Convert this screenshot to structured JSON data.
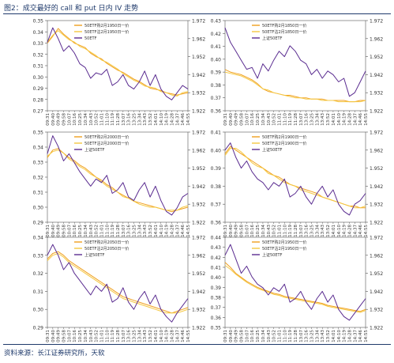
{
  "figure": {
    "title": "图2：成交最好的 call 和 put 日内 IV 走势",
    "source": "资料来源：长江证券研究所，天软"
  },
  "colors": {
    "orange": "#f0a020",
    "lightorange": "#f5c842",
    "purple": "#5a2c90",
    "axis": "#555555",
    "title": "#1f3a6b"
  },
  "chart_data": [
    {
      "type": "line",
      "y_left": [
        0.27,
        0.28,
        0.29,
        0.3,
        0.31,
        0.32,
        0.33,
        0.34,
        0.35
      ],
      "y_left_labels": [
        "0.27",
        "0.28",
        "0.29",
        "0.30",
        "0.31",
        "0.32",
        "0.33",
        "0.34",
        "0.35"
      ],
      "y_right": [
        1.922,
        1.932,
        1.942,
        1.952,
        1.962,
        1.972
      ],
      "y_right_labels": [
        "1.922",
        "1.932",
        "1.942",
        "1.952",
        "1.962",
        "1.972"
      ],
      "x_labels": [
        "09:31",
        "09:40",
        "09:49",
        "09:58",
        "10:07",
        "10:16",
        "10:25",
        "10:34",
        "10:43",
        "10:52",
        "11:01",
        "11:10",
        "11:19",
        "11:28",
        "13:07",
        "13:16",
        "13:25",
        "13:34",
        "13:43",
        "13:52",
        "14:01",
        "14:10",
        "14:19",
        "14:28",
        "14:37",
        "14:46",
        "14:55"
      ],
      "series": [
        {
          "name": "50ETF购2月1950日一价",
          "axis": "left",
          "color": "orange",
          "values": [
            0.33,
            0.336,
            0.343,
            0.338,
            0.334,
            0.33,
            0.328,
            0.326,
            0.321,
            0.318,
            0.316,
            0.312,
            0.309,
            0.306,
            0.304,
            0.301,
            0.298,
            0.296,
            0.293,
            0.29,
            0.289,
            0.288,
            0.286,
            0.285,
            0.284,
            0.285,
            0.286
          ]
        },
        {
          "name": "50ETF沽2月1950日一价",
          "axis": "left",
          "color": "lightorange",
          "values": [
            0.331,
            0.337,
            0.341,
            0.337,
            0.333,
            0.331,
            0.327,
            0.325,
            0.322,
            0.319,
            0.315,
            0.313,
            0.31,
            0.307,
            0.303,
            0.3,
            0.297,
            0.295,
            0.292,
            0.291,
            0.29,
            0.287,
            0.286,
            0.284,
            0.283,
            0.286,
            0.287
          ]
        },
        {
          "name": "50ETF",
          "axis": "right",
          "color": "purple",
          "values": [
            1.96,
            1.968,
            1.962,
            1.955,
            1.958,
            1.954,
            1.948,
            1.946,
            1.94,
            1.943,
            1.942,
            1.945,
            1.936,
            1.938,
            1.942,
            1.936,
            1.934,
            1.938,
            1.944,
            1.936,
            1.942,
            1.934,
            1.93,
            1.928,
            1.932,
            1.936,
            1.934
          ]
        }
      ]
    },
    {
      "type": "line",
      "y_left": [
        0.36,
        0.37,
        0.38,
        0.39,
        0.4,
        0.41,
        0.42,
        0.43
      ],
      "y_left_labels": [
        "0.36",
        "0.37",
        "0.38",
        "0.39",
        "0.40",
        "0.41",
        "0.42",
        "0.43"
      ],
      "y_right": [
        1.922,
        1.932,
        1.942,
        1.952,
        1.962,
        1.972
      ],
      "y_right_labels": [
        "1.922",
        "1.932",
        "1.942",
        "1.952",
        "1.962",
        "1.972"
      ],
      "x_labels": [
        "09:31",
        "09:40",
        "09:49",
        "09:58",
        "10:07",
        "10:16",
        "10:25",
        "10:34",
        "10:43",
        "10:52",
        "11:01",
        "11:10",
        "11:19",
        "11:28",
        "13:07",
        "13:16",
        "13:25",
        "13:34",
        "13:43",
        "13:52",
        "14:01",
        "14:10",
        "14:19",
        "14:28",
        "14:37",
        "14:46",
        "14:55"
      ],
      "series": [
        {
          "name": "50ETF购2月1850日一价",
          "axis": "left",
          "color": "orange",
          "values": [
            0.392,
            0.39,
            0.389,
            0.388,
            0.386,
            0.384,
            0.381,
            0.377,
            0.375,
            0.374,
            0.373,
            0.372,
            0.372,
            0.371,
            0.37,
            0.37,
            0.369,
            0.369,
            0.369,
            0.368,
            0.368,
            0.368,
            0.368,
            0.367,
            0.367,
            0.368,
            0.368
          ]
        },
        {
          "name": "50ETF沽2月1850日一价",
          "axis": "left",
          "color": "lightorange",
          "values": [
            0.39,
            0.389,
            0.388,
            0.387,
            0.385,
            0.383,
            0.38,
            0.377,
            0.376,
            0.374,
            0.373,
            0.372,
            0.371,
            0.37,
            0.37,
            0.369,
            0.369,
            0.369,
            0.368,
            0.368,
            0.368,
            0.367,
            0.367,
            0.367,
            0.367,
            0.367,
            0.368
          ]
        },
        {
          "name": "上证50ETF",
          "axis": "right",
          "color": "purple",
          "values": [
            1.968,
            1.96,
            1.955,
            1.95,
            1.945,
            1.946,
            1.94,
            1.948,
            1.944,
            1.95,
            1.955,
            1.952,
            1.958,
            1.955,
            1.95,
            1.948,
            1.942,
            1.945,
            1.94,
            1.944,
            1.942,
            1.938,
            1.94,
            1.93,
            1.932,
            1.938,
            1.944
          ]
        }
      ]
    },
    {
      "type": "line",
      "y_left": [
        0.29,
        0.3,
        0.31,
        0.32,
        0.33,
        0.34,
        0.35
      ],
      "y_left_labels": [
        "0.29",
        "0.30",
        "0.31",
        "0.32",
        "0.33",
        "0.34",
        "0.35"
      ],
      "y_right": [
        1.922,
        1.932,
        1.942,
        1.952,
        1.962,
        1.972
      ],
      "y_right_labels": [
        "1.922",
        "1.932",
        "1.942",
        "1.952",
        "1.962",
        "1.972"
      ],
      "x_labels": [
        "09:31",
        "09:40",
        "09:49",
        "09:58",
        "10:07",
        "10:16",
        "10:25",
        "10:34",
        "10:43",
        "10:52",
        "11:01",
        "11:10",
        "11:19",
        "11:28",
        "13:07",
        "13:16",
        "13:25",
        "13:34",
        "13:43",
        "13:52",
        "14:01",
        "14:10",
        "14:19",
        "14:28",
        "14:37",
        "14:46",
        "14:55"
      ],
      "series": [
        {
          "name": "50ETF购2月2000日一价",
          "axis": "left",
          "color": "orange",
          "values": [
            0.333,
            0.338,
            0.339,
            0.336,
            0.333,
            0.331,
            0.328,
            0.326,
            0.323,
            0.32,
            0.318,
            0.315,
            0.313,
            0.31,
            0.308,
            0.306,
            0.304,
            0.303,
            0.302,
            0.301,
            0.3,
            0.299,
            0.298,
            0.297,
            0.298,
            0.299,
            0.3
          ]
        },
        {
          "name": "50ETF沽2月2000日一价",
          "axis": "left",
          "color": "lightorange",
          "values": [
            0.334,
            0.337,
            0.338,
            0.336,
            0.332,
            0.33,
            0.327,
            0.325,
            0.322,
            0.32,
            0.317,
            0.314,
            0.312,
            0.31,
            0.307,
            0.306,
            0.304,
            0.302,
            0.301,
            0.3,
            0.3,
            0.299,
            0.298,
            0.298,
            0.298,
            0.3,
            0.301
          ]
        },
        {
          "name": "上证50ETF",
          "axis": "right",
          "color": "purple",
          "values": [
            1.96,
            1.97,
            1.964,
            1.956,
            1.96,
            1.955,
            1.95,
            1.946,
            1.942,
            1.946,
            1.944,
            1.948,
            1.938,
            1.94,
            1.944,
            1.936,
            1.934,
            1.94,
            1.944,
            1.936,
            1.942,
            1.934,
            1.928,
            1.926,
            1.93,
            1.936,
            1.938
          ]
        }
      ]
    },
    {
      "type": "line",
      "y_left": [
        0.36,
        0.37,
        0.38,
        0.39,
        0.4,
        0.41
      ],
      "y_left_labels": [
        "0.36",
        "0.37",
        "0.38",
        "0.39",
        "0.40",
        "0.41"
      ],
      "y_right": [
        1.922,
        1.932,
        1.942,
        1.952,
        1.962,
        1.972
      ],
      "y_right_labels": [
        "1.922",
        "1.932",
        "1.942",
        "1.952",
        "1.962",
        "1.972"
      ],
      "x_labels": [
        "09:31",
        "09:40",
        "09:49",
        "09:58",
        "10:07",
        "10:16",
        "10:25",
        "10:34",
        "10:43",
        "10:52",
        "11:01",
        "11:10",
        "11:19",
        "11:28",
        "13:07",
        "13:16",
        "13:25",
        "13:34",
        "13:43",
        "13:52",
        "14:01",
        "14:10",
        "14:19",
        "14:28",
        "14:37",
        "14:46",
        "14:55"
      ],
      "series": [
        {
          "name": "50ETF购2月1900日一价",
          "axis": "left",
          "color": "orange",
          "values": [
            0.398,
            0.402,
            0.4,
            0.398,
            0.396,
            0.394,
            0.392,
            0.39,
            0.388,
            0.386,
            0.385,
            0.383,
            0.381,
            0.38,
            0.379,
            0.378,
            0.377,
            0.376,
            0.374,
            0.373,
            0.372,
            0.371,
            0.37,
            0.369,
            0.369,
            0.368,
            0.368
          ]
        },
        {
          "name": "50ETF沽2月1900日一价",
          "axis": "left",
          "color": "lightorange",
          "values": [
            0.397,
            0.401,
            0.401,
            0.399,
            0.396,
            0.393,
            0.391,
            0.39,
            0.387,
            0.386,
            0.384,
            0.382,
            0.381,
            0.38,
            0.378,
            0.377,
            0.376,
            0.375,
            0.374,
            0.373,
            0.372,
            0.371,
            0.37,
            0.369,
            0.368,
            0.368,
            0.369
          ]
        },
        {
          "name": "上证50ETF",
          "axis": "right",
          "color": "purple",
          "values": [
            1.962,
            1.966,
            1.958,
            1.952,
            1.956,
            1.95,
            1.946,
            1.944,
            1.94,
            1.944,
            1.942,
            1.946,
            1.936,
            1.938,
            1.942,
            1.936,
            1.932,
            1.938,
            1.942,
            1.936,
            1.94,
            1.932,
            1.928,
            1.926,
            1.932,
            1.934,
            1.938
          ]
        }
      ]
    },
    {
      "type": "line",
      "y_left": [
        0.29,
        0.3,
        0.31,
        0.32,
        0.33,
        0.34
      ],
      "y_left_labels": [
        "0.29",
        "0.30",
        "0.31",
        "0.32",
        "0.33",
        "0.34"
      ],
      "y_right": [
        1.922,
        1.932,
        1.942,
        1.952,
        1.962,
        1.972
      ],
      "y_right_labels": [
        "1.922",
        "1.932",
        "1.942",
        "1.952",
        "1.962",
        "1.972"
      ],
      "x_labels": [
        "09:31",
        "09:40",
        "09:49",
        "09:58",
        "10:07",
        "10:16",
        "10:25",
        "10:34",
        "10:43",
        "10:52",
        "11:01",
        "11:10",
        "11:19",
        "11:28",
        "13:07",
        "13:16",
        "13:25",
        "13:34",
        "13:43",
        "13:52",
        "14:01",
        "14:10",
        "14:19",
        "14:28",
        "14:37",
        "14:46",
        "14:55"
      ],
      "series": [
        {
          "name": "50ETF购2月2050日一价",
          "axis": "left",
          "color": "orange",
          "values": [
            0.328,
            0.331,
            0.332,
            0.33,
            0.327,
            0.325,
            0.323,
            0.321,
            0.319,
            0.317,
            0.315,
            0.313,
            0.311,
            0.309,
            0.307,
            0.306,
            0.305,
            0.304,
            0.303,
            0.302,
            0.301,
            0.3,
            0.299,
            0.298,
            0.299,
            0.3,
            0.301
          ]
        },
        {
          "name": "50ETF沽2月2050日一价",
          "axis": "left",
          "color": "lightorange",
          "values": [
            0.327,
            0.33,
            0.331,
            0.329,
            0.326,
            0.324,
            0.322,
            0.32,
            0.318,
            0.316,
            0.314,
            0.312,
            0.31,
            0.308,
            0.306,
            0.305,
            0.304,
            0.303,
            0.302,
            0.301,
            0.3,
            0.299,
            0.298,
            0.298,
            0.298,
            0.299,
            0.3
          ]
        },
        {
          "name": "上证50ETF",
          "axis": "right",
          "color": "purple",
          "values": [
            1.962,
            1.968,
            1.962,
            1.954,
            1.958,
            1.952,
            1.948,
            1.944,
            1.94,
            1.945,
            1.942,
            1.946,
            1.936,
            1.938,
            1.944,
            1.936,
            1.932,
            1.938,
            1.942,
            1.935,
            1.94,
            1.932,
            1.928,
            1.925,
            1.93,
            1.934,
            1.938
          ]
        }
      ]
    },
    {
      "type": "line",
      "y_left": [
        0.35,
        0.36,
        0.37,
        0.38,
        0.39,
        0.4,
        0.41,
        0.42,
        0.43,
        0.44
      ],
      "y_left_labels": [
        "0.35",
        "0.36",
        "0.37",
        "0.38",
        "0.39",
        "0.40",
        "0.41",
        "0.42",
        "0.43",
        "0.44"
      ],
      "y_right": [
        1.922,
        1.932,
        1.942,
        1.952,
        1.962,
        1.972
      ],
      "y_right_labels": [
        "1.922",
        "1.932",
        "1.942",
        "1.952",
        "1.962",
        "1.972"
      ],
      "x_labels": [
        "09:31",
        "09:40",
        "09:49",
        "09:58",
        "10:07",
        "10:16",
        "10:25",
        "10:34",
        "10:43",
        "10:52",
        "11:01",
        "11:10",
        "11:19",
        "11:28",
        "13:07",
        "13:16",
        "13:25",
        "13:34",
        "13:43",
        "13:52",
        "14:01",
        "14:10",
        "14:19",
        "14:28",
        "14:37",
        "14:46",
        "14:55"
      ],
      "series": [
        {
          "name": "50ETF购2月1950日一价",
          "axis": "left",
          "color": "orange",
          "values": [
            0.415,
            0.41,
            0.404,
            0.4,
            0.396,
            0.393,
            0.39,
            0.388,
            0.386,
            0.384,
            0.383,
            0.381,
            0.38,
            0.379,
            0.378,
            0.377,
            0.376,
            0.375,
            0.374,
            0.372,
            0.371,
            0.37,
            0.369,
            0.368,
            0.367,
            0.366,
            0.368
          ]
        },
        {
          "name": "50ETF沽2月1950日一价",
          "axis": "left",
          "color": "lightorange",
          "values": [
            0.412,
            0.408,
            0.403,
            0.399,
            0.395,
            0.392,
            0.389,
            0.387,
            0.385,
            0.383,
            0.382,
            0.38,
            0.379,
            0.378,
            0.377,
            0.376,
            0.375,
            0.374,
            0.373,
            0.371,
            0.37,
            0.369,
            0.368,
            0.367,
            0.366,
            0.365,
            0.367
          ]
        },
        {
          "name": "上证50ETF",
          "axis": "right",
          "color": "purple",
          "values": [
            1.962,
            1.968,
            1.96,
            1.952,
            1.956,
            1.95,
            1.946,
            1.944,
            1.94,
            1.944,
            1.942,
            1.946,
            1.936,
            1.938,
            1.942,
            1.936,
            1.932,
            1.938,
            1.942,
            1.936,
            1.94,
            1.932,
            1.928,
            1.926,
            1.93,
            1.934,
            1.938
          ]
        }
      ]
    }
  ]
}
